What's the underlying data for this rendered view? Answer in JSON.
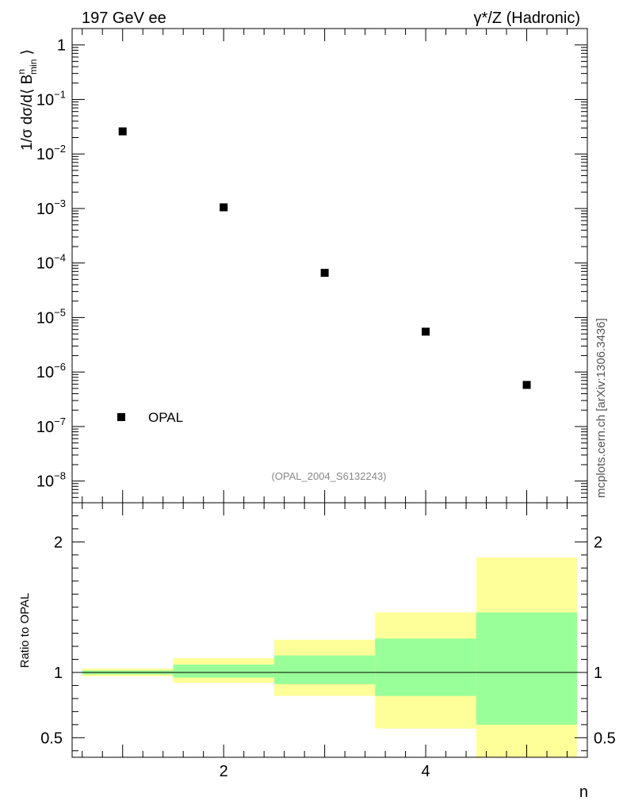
{
  "header": {
    "left": "197 GeV ee",
    "right_prefix": "γ*/Z (Hadronic)"
  },
  "watermark": "mcplots.cern.ch [arXiv:1306.3436]",
  "analysis_tag": "(OPAL_2004_S6132243)",
  "chart_data": [
    {
      "type": "scatter",
      "panel": "main",
      "ylabel": "1/σ dσ/d⟨ B^n_min ⟩",
      "yscale": "log",
      "ylim": [
        4e-09,
        2
      ],
      "xlim": [
        0.5,
        5.6
      ],
      "y_tick_labels": [
        "1",
        "10⁻¹",
        "10⁻²",
        "10⁻³",
        "10⁻⁴",
        "10⁻⁵",
        "10⁻⁶",
        "10⁻⁷",
        "10⁻⁸"
      ],
      "y_tick_values": [
        1,
        0.1,
        0.01,
        0.001,
        0.0001,
        1e-05,
        1e-06,
        1e-07,
        1e-08
      ],
      "series": [
        {
          "name": "OPAL",
          "color": "#000000",
          "marker": "square",
          "x": [
            1,
            2,
            3,
            4,
            5
          ],
          "y": [
            0.026,
            0.00105,
            6.6e-05,
            5.5e-06,
            5.8e-07
          ]
        }
      ],
      "legend": {
        "label": "OPAL",
        "placement": "bottom-left"
      }
    },
    {
      "type": "area",
      "panel": "ratio",
      "ylabel": "Ratio to OPAL",
      "xlabel": "n",
      "ylim": [
        0.35,
        2.3
      ],
      "xlim": [
        0.5,
        5.6
      ],
      "x_tick_labels": [
        "2",
        "4"
      ],
      "x_tick_values": [
        2,
        4
      ],
      "y_tick_labels": [
        "0.5",
        "1",
        "2"
      ],
      "y_tick_values": [
        0.5,
        1,
        2
      ],
      "reference_line": 1,
      "bins": [
        {
          "x_low": 0.6,
          "x_high": 1.5,
          "inner": [
            0.985,
            1.015
          ],
          "outer": [
            0.97,
            1.03
          ]
        },
        {
          "x_low": 1.5,
          "x_high": 2.5,
          "inner": [
            0.96,
            1.06
          ],
          "outer": [
            0.92,
            1.11
          ]
        },
        {
          "x_low": 2.5,
          "x_high": 3.5,
          "inner": [
            0.91,
            1.13
          ],
          "outer": [
            0.82,
            1.25
          ]
        },
        {
          "x_low": 3.5,
          "x_high": 4.5,
          "inner": [
            0.82,
            1.26
          ],
          "outer": [
            0.57,
            1.46
          ]
        },
        {
          "x_low": 4.5,
          "x_high": 5.5,
          "inner": [
            0.6,
            1.46
          ],
          "outer": [
            0.35,
            1.88
          ]
        }
      ],
      "colors": {
        "inner": "#99ff99",
        "outer": "#ffff99"
      }
    }
  ]
}
